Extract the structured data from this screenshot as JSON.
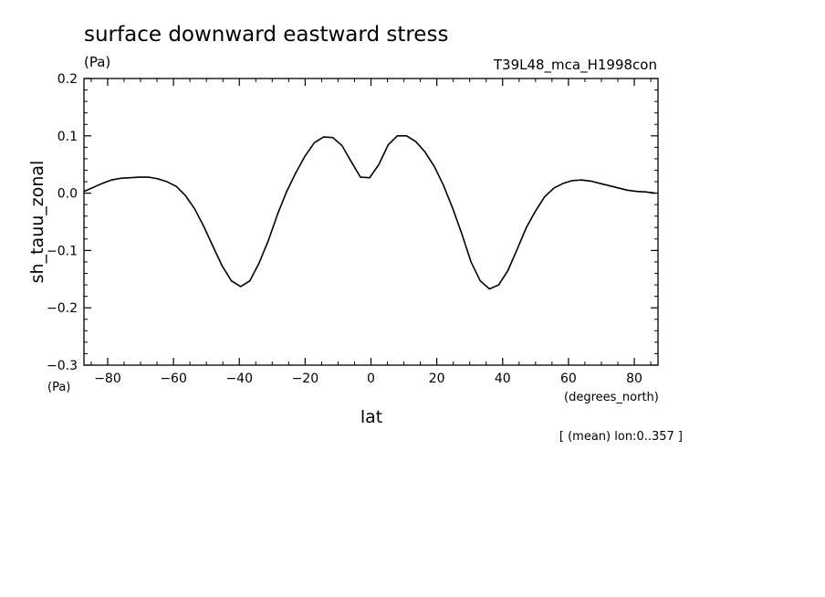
{
  "chart_data": {
    "type": "line",
    "title": "surface downward eastward stress",
    "units_top": "(Pa)",
    "dataset": "T39L48_mca_H1998con",
    "ylabel": "sh_tauu_zonal",
    "yunits": "(Pa)",
    "xlabel": "lat",
    "xunits": "(degrees_north)",
    "note": "[ (mean) lon:0..357 ]",
    "xlim": [
      -87.2,
      87.2
    ],
    "ylim": [
      -0.3,
      0.2
    ],
    "xticks": [
      -80,
      -60,
      -40,
      -20,
      0,
      20,
      40,
      60,
      80
    ],
    "xtick_labels": [
      "−80",
      "−60",
      "−40",
      "−20",
      "0",
      "20",
      "40",
      "60",
      "80"
    ],
    "yticks": [
      0.2,
      0.1,
      0.0,
      -0.1,
      -0.2,
      -0.3
    ],
    "ytick_labels": [
      "0.2",
      "0.1",
      "0.0",
      "−0.1",
      "−0.2",
      "−0.3"
    ],
    "x": [
      -87.2,
      -84.4,
      -81.6,
      -78.8,
      -76.0,
      -73.2,
      -70.4,
      -67.6,
      -64.8,
      -62.0,
      -59.2,
      -56.4,
      -53.6,
      -50.8,
      -48.0,
      -45.2,
      -42.4,
      -39.6,
      -36.8,
      -34.0,
      -31.2,
      -28.4,
      -25.6,
      -22.8,
      -20.0,
      -17.2,
      -14.4,
      -11.6,
      -8.8,
      -6.0,
      -3.2,
      -0.4,
      2.4,
      5.2,
      8.0,
      10.8,
      13.6,
      16.4,
      19.2,
      22.0,
      24.8,
      27.6,
      30.4,
      33.2,
      36.0,
      38.8,
      41.6,
      44.4,
      47.2,
      50.0,
      52.8,
      55.6,
      58.4,
      61.2,
      64.0,
      66.8,
      69.6,
      72.4,
      75.2,
      78.0,
      80.8,
      83.6,
      86.4
    ],
    "y": [
      0.003,
      0.01,
      0.017,
      0.023,
      0.026,
      0.027,
      0.028,
      0.028,
      0.025,
      0.02,
      0.012,
      -0.004,
      -0.027,
      -0.058,
      -0.093,
      -0.127,
      -0.153,
      -0.163,
      -0.153,
      -0.122,
      -0.083,
      -0.037,
      0.003,
      0.036,
      0.065,
      0.088,
      0.098,
      0.097,
      0.083,
      0.055,
      0.028,
      0.027,
      0.05,
      0.084,
      0.1,
      0.1,
      0.09,
      0.072,
      0.047,
      0.014,
      -0.026,
      -0.071,
      -0.12,
      -0.153,
      -0.167,
      -0.16,
      -0.135,
      -0.098,
      -0.06,
      -0.031,
      -0.006,
      0.009,
      0.017,
      0.022,
      0.023,
      0.021,
      0.017,
      0.013,
      0.009,
      0.005,
      0.003,
      0.002,
      0.0
    ],
    "grid": false,
    "legend": "none",
    "line_color": "#000000"
  }
}
